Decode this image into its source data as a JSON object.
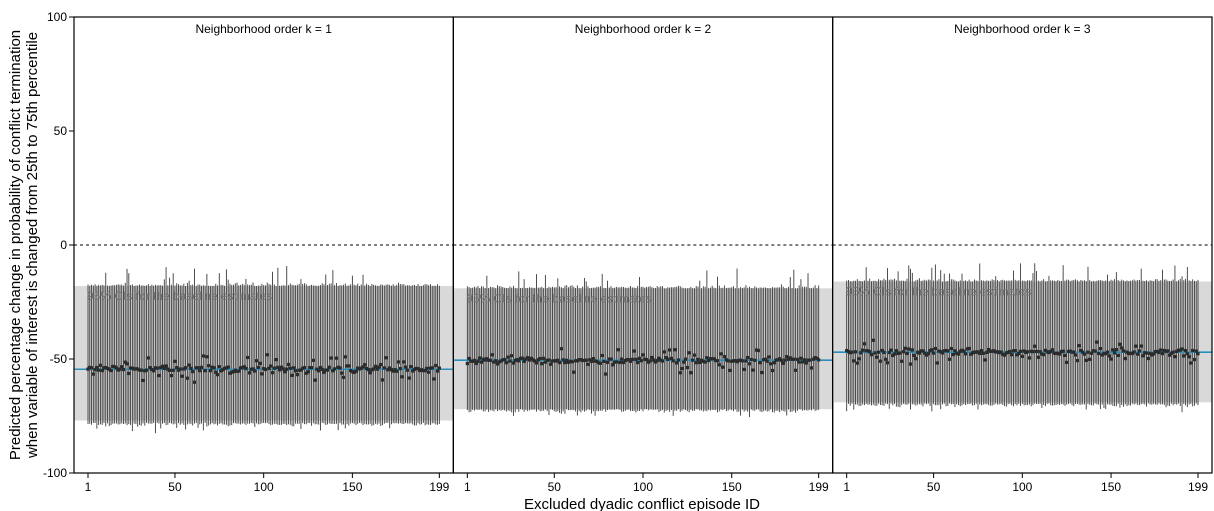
{
  "chart_data": {
    "type": "scatter",
    "x_label": "Excluded dyadic conflict episode ID",
    "y_label_lines": [
      "Predicted percentage change in probability of conflict termination",
      "when variable of interest is changed from 25th to 75th percentile"
    ],
    "y_range": [
      -100,
      100
    ],
    "y_ticks": [
      "100",
      "50",
      "0",
      "-50",
      "-100"
    ],
    "x_range": [
      1,
      199
    ],
    "x_ticks": [
      "1",
      "50",
      "100",
      "150",
      "199"
    ],
    "zero_reference_line": {
      "y": 0,
      "style": "dashed"
    },
    "colors": {
      "baseline_line": "#2a8fbd",
      "baseline_band": "#d9d9d9",
      "error_bars": "#3c3c3c",
      "points": "#2b2b2b",
      "ci_label": "#707070"
    },
    "panels": [
      {
        "title": "Neighborhood order k = 1",
        "ci_label": "95% CIs for the baseline estimates",
        "baseline_estimate": -54.5,
        "baseline_ci": [
          -77,
          -18
        ],
        "point_center": -54.5,
        "upper_typical": -18,
        "lower_typical": -78,
        "approx_point_range": [
          -58,
          -48
        ]
      },
      {
        "title": "Neighborhood order k = 2",
        "ci_label": "95% CIs for the baseline estimates",
        "baseline_estimate": -50.5,
        "baseline_ci": [
          -72,
          -19
        ],
        "point_center": -50.5,
        "upper_typical": -19,
        "lower_typical": -72,
        "approx_point_range": [
          -55,
          -45
        ]
      },
      {
        "title": "Neighborhood order k = 3",
        "ci_label": "95% CIs for the baseline estimates",
        "baseline_estimate": -47,
        "baseline_ci": [
          -69,
          -16
        ],
        "point_center": -47,
        "upper_typical": -16,
        "lower_typical": -69.5,
        "approx_point_range": [
          -51,
          -41
        ]
      }
    ]
  }
}
